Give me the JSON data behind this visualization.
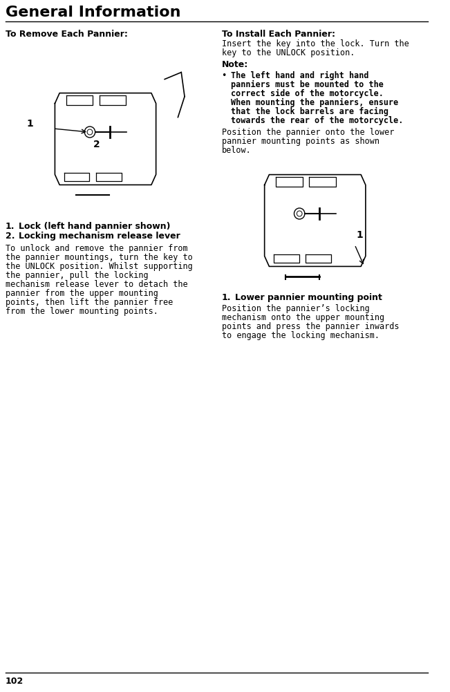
{
  "title": "General Information",
  "page_number": "102",
  "background_color": "#ffffff",
  "text_color": "#000000",
  "title_fontsize": 16,
  "body_fontsize": 8.5,
  "left_column": {
    "heading": "To Remove Each Pannier:",
    "numbered_items": [
      "Lock (left hand pannier shown)",
      "Locking mechanism release lever"
    ],
    "body_text": "To unlock and remove the pannier from the pannier mountings, turn the key to the UNLOCK position. Whilst supporting the pannier, pull the locking mechanism release lever to detach the pannier from the upper mounting points, then lift the pannier free from the lower mounting points."
  },
  "right_column": {
    "heading": "To Install Each Pannier:",
    "intro_text": "Insert the key into the lock. Turn the key to the UNLOCK position.",
    "note_heading": "Note:",
    "note_bullet": "The left hand and right hand panniers must be mounted to the correct side of the motorcycle. When mounting the panniers, ensure that the lock barrels are facing towards the rear of the motorcycle.",
    "after_note_text": "Position the pannier onto the lower pannier mounting points as shown below.",
    "numbered_item": "Lower pannier mounting point",
    "final_text": "Position the pannier’s locking mechanism onto the upper mounting points and press the pannier inwards to engage the locking mechanism."
  }
}
